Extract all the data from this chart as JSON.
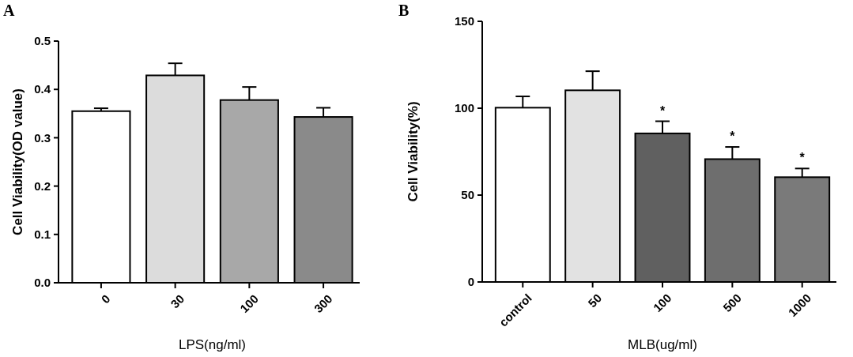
{
  "chart_data": [
    {
      "type": "bar",
      "title": "A",
      "categories": [
        "0",
        "30",
        "100",
        "300"
      ],
      "values": [
        0.355,
        0.429,
        0.378,
        0.343
      ],
      "errors": [
        0.006,
        0.025,
        0.027,
        0.019
      ],
      "colors": [
        "#ffffff",
        "#dcdcdc",
        "#a8a8a8",
        "#8a8a8a"
      ],
      "xlabel": "LPS(ng/ml)",
      "ylabel": "Cell Viability(OD value)",
      "ylim": [
        0,
        0.5
      ],
      "yticks": [
        {
          "value": 0,
          "label": "0.0"
        },
        0.1,
        0.2,
        0.3,
        0.4,
        0.5
      ]
    },
    {
      "type": "bar",
      "title": "B",
      "categories": [
        "control",
        "50",
        "100",
        "500",
        "1000"
      ],
      "values": [
        100.3,
        110.3,
        85.5,
        70.7,
        60.3
      ],
      "errors": [
        6.5,
        11,
        7,
        7,
        5
      ],
      "colors": [
        "#ffffff",
        "#e2e2e2",
        "#606060",
        "#6e6e6e",
        "#7a7a7a"
      ],
      "xlabel": "MLB(ug/ml)",
      "ylabel": "Cell Viability(%)",
      "ylim": [
        0,
        150
      ],
      "yticks": [
        0,
        50,
        100,
        150
      ],
      "annotations": [
        {
          "text": "*",
          "x": "100",
          "y": 92.5
        },
        {
          "text": "*",
          "x": "500",
          "y": 77.7
        },
        {
          "text": "*",
          "x": "1000",
          "y": 65.3
        }
      ]
    }
  ]
}
